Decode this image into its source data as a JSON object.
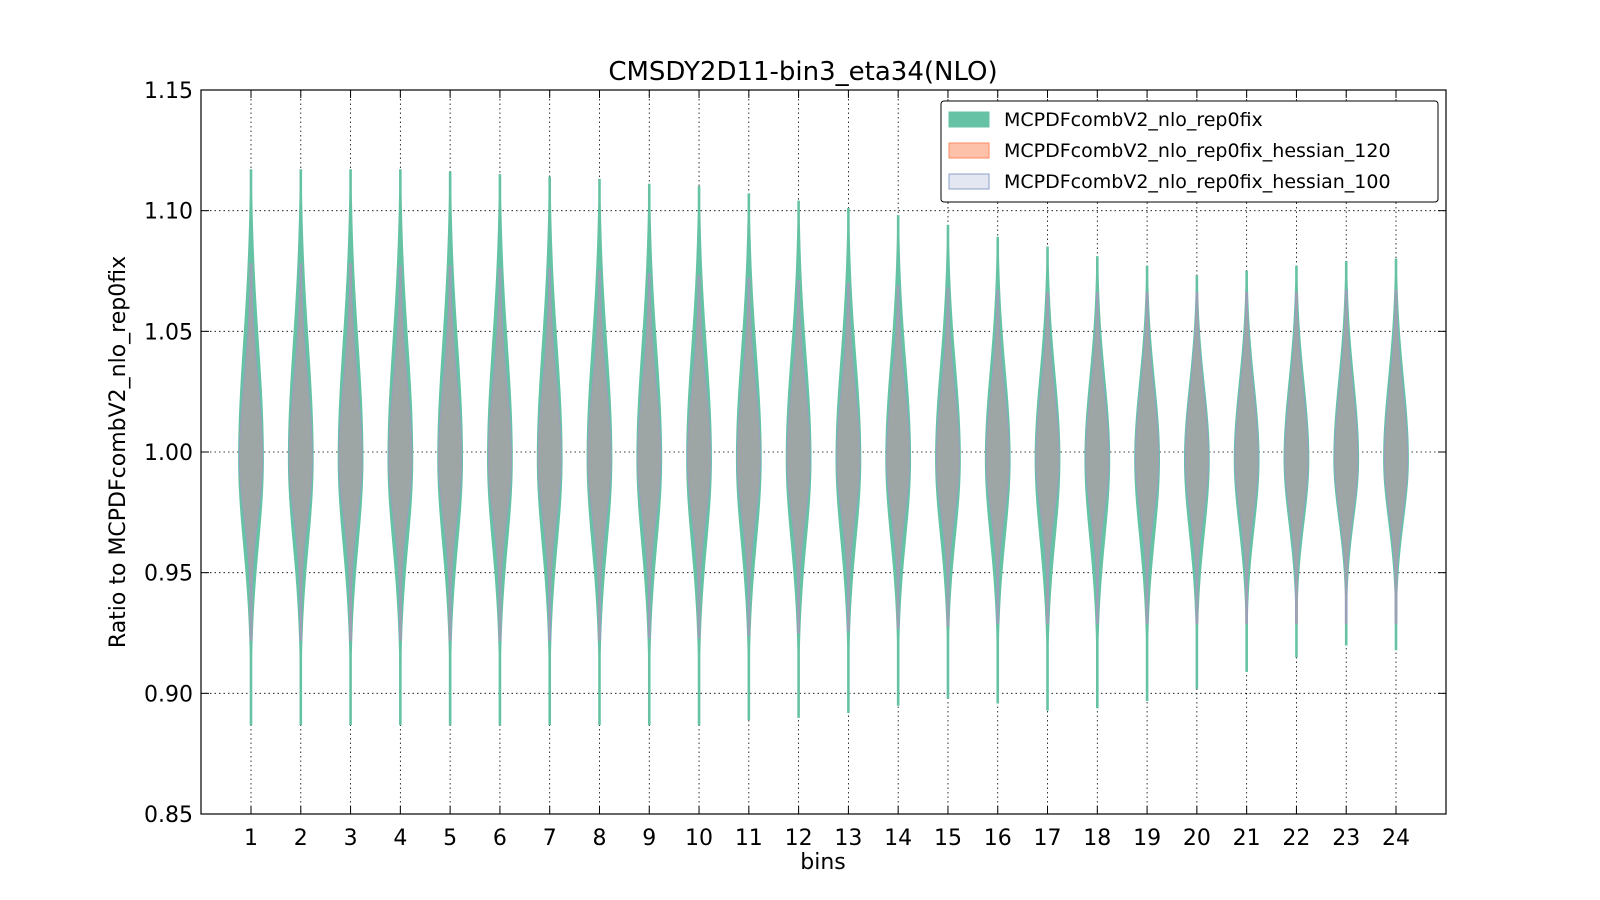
{
  "chart_data": {
    "type": "violin",
    "title": "CMSDY2D11-bin3_eta34(NLO)",
    "xlabel": "bins",
    "ylabel": "Ratio to MCPDFcombV2_nlo_rep0fix",
    "ylim": [
      0.85,
      1.15
    ],
    "yticks": [
      "0.85",
      "0.90",
      "0.95",
      "1.00",
      "1.05",
      "1.10",
      "1.15"
    ],
    "categories": [
      "1",
      "2",
      "3",
      "4",
      "5",
      "6",
      "7",
      "8",
      "9",
      "10",
      "11",
      "12",
      "13",
      "14",
      "15",
      "16",
      "17",
      "18",
      "19",
      "20",
      "21",
      "22",
      "23",
      "24"
    ],
    "grid": true,
    "legend_position": "top-right",
    "series": [
      {
        "name": "MCPDFcombV2_nlo_rep0fix",
        "color": "#66c2a5",
        "min": [
          0.887,
          0.887,
          0.887,
          0.887,
          0.887,
          0.887,
          0.887,
          0.887,
          0.887,
          0.887,
          0.889,
          0.89,
          0.892,
          0.895,
          0.898,
          0.896,
          0.893,
          0.894,
          0.897,
          0.902,
          0.909,
          0.915,
          0.92,
          0.918
        ],
        "max": [
          1.117,
          1.117,
          1.117,
          1.117,
          1.116,
          1.115,
          1.114,
          1.113,
          1.111,
          1.11,
          1.107,
          1.104,
          1.101,
          1.098,
          1.094,
          1.089,
          1.085,
          1.081,
          1.077,
          1.073,
          1.075,
          1.077,
          1.079,
          1.08
        ]
      },
      {
        "name": "MCPDFcombV2_nlo_rep0fix_hessian_120",
        "color": "#fc8d62",
        "min": [
          0.922,
          0.922,
          0.922,
          0.922,
          0.922,
          0.922,
          0.922,
          0.922,
          0.923,
          0.923,
          0.924,
          0.925,
          0.926,
          0.927,
          0.928,
          0.929,
          0.929,
          0.929,
          0.929,
          0.929,
          0.929,
          0.929,
          0.929,
          0.929
        ],
        "max": [
          1.078,
          1.078,
          1.078,
          1.077,
          1.077,
          1.076,
          1.076,
          1.075,
          1.074,
          1.073,
          1.072,
          1.071,
          1.07,
          1.069,
          1.068,
          1.067,
          1.066,
          1.066,
          1.066,
          1.066,
          1.066,
          1.066,
          1.067,
          1.067
        ]
      },
      {
        "name": "MCPDFcombV2_nlo_rep0fix_hessian_100",
        "color": "#8da0cb",
        "min": [
          0.922,
          0.922,
          0.922,
          0.922,
          0.922,
          0.922,
          0.922,
          0.922,
          0.923,
          0.923,
          0.924,
          0.925,
          0.926,
          0.927,
          0.928,
          0.929,
          0.929,
          0.929,
          0.929,
          0.929,
          0.929,
          0.929,
          0.929,
          0.929
        ],
        "max": [
          1.078,
          1.078,
          1.078,
          1.077,
          1.077,
          1.076,
          1.076,
          1.075,
          1.074,
          1.073,
          1.072,
          1.071,
          1.07,
          1.069,
          1.068,
          1.067,
          1.066,
          1.066,
          1.066,
          1.066,
          1.066,
          1.066,
          1.067,
          1.067
        ]
      }
    ]
  }
}
